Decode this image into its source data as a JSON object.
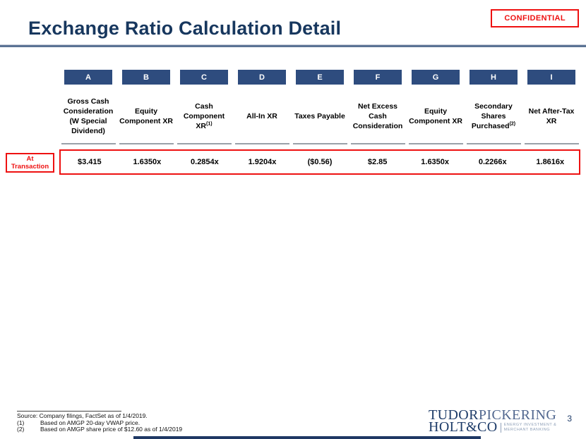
{
  "page": {
    "title": "Exchange Ratio Calculation Detail",
    "confidential_label": "CONFIDENTIAL",
    "page_number": "3"
  },
  "colors": {
    "title_navy": "#17375E",
    "header_box_navy": "#2E4C7E",
    "accent_red": "#EE1111",
    "divider_blue": "#5B7394",
    "logo_navy": "#1E3C69",
    "logo_light_blue": "#8FA0B8"
  },
  "table": {
    "row_label": "At Transaction",
    "columns": [
      {
        "letter": "A",
        "header": "Gross Cash Consideration (W Special Dividend)",
        "sup": "",
        "value": "$3.415"
      },
      {
        "letter": "B",
        "header": "Equity Component XR",
        "sup": "",
        "value": "1.6350x"
      },
      {
        "letter": "C",
        "header": "Cash Component XR",
        "sup": "(1)",
        "value": "0.2854x"
      },
      {
        "letter": "D",
        "header": "All-In XR",
        "sup": "",
        "value": "1.9204x"
      },
      {
        "letter": "E",
        "header": "Taxes Payable",
        "sup": "",
        "value": "($0.56)"
      },
      {
        "letter": "F",
        "header": "Net Excess Cash Consideration",
        "sup": "",
        "value": "$2.85"
      },
      {
        "letter": "G",
        "header": "Equity Component XR",
        "sup": "",
        "value": "1.6350x"
      },
      {
        "letter": "H",
        "header": "Secondary Shares Purchased",
        "sup": "(2)",
        "value": "0.2266x"
      },
      {
        "letter": "I",
        "header": "Net After-Tax XR",
        "sup": "",
        "value": "1.8616x"
      }
    ]
  },
  "footnotes": {
    "source": "Source: Company filings, FactSet as of 1/4/2019.",
    "items": [
      {
        "marker": "(1)",
        "text": "Based on AMGP 20-day VWAP price."
      },
      {
        "marker": "(2)",
        "text": "Based on AMGP share price of $12.60 as of 1/4/2019"
      }
    ]
  },
  "footer": {
    "logo_part1": "TUDOR",
    "logo_part2": "PICKERING",
    "logo_line2": "HOLT&CO",
    "tagline_line1": "ENERGY INVESTMENT &",
    "tagline_line2": "MERCHANT BANKING"
  }
}
